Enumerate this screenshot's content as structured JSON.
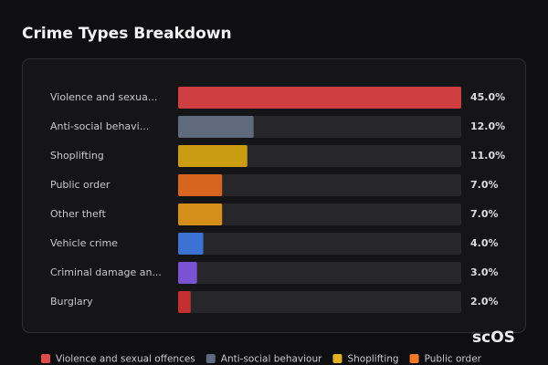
{
  "chart_data": {
    "type": "bar",
    "orientation": "horizontal",
    "title": "Crime Types Breakdown",
    "categories": [
      "Violence and sexua...",
      "Anti-social behavi...",
      "Shoplifting",
      "Public order",
      "Other theft",
      "Vehicle crime",
      "Criminal damage an...",
      "Burglary"
    ],
    "values": [
      45,
      12,
      11,
      7,
      7,
      4,
      3,
      2
    ],
    "value_labels": [
      "45.0%",
      "12.0%",
      "11.0%",
      "7.0%",
      "7.0%",
      "4.0%",
      "3.0%",
      "2.0%"
    ],
    "colors": [
      "#cf3f42",
      "#5f6b7c",
      "#c99c12",
      "#d8651f",
      "#d48e1a",
      "#3b72d4",
      "#7a52d4",
      "#c4302f"
    ],
    "xlim": [
      0,
      45
    ],
    "legend": [
      {
        "name": "Violence and sexual offences",
        "color": "#e04a4c"
      },
      {
        "name": "Anti-social behaviour",
        "color": "#5d6b80"
      },
      {
        "name": "Shoplifting",
        "color": "#e3b224"
      },
      {
        "name": "Public order",
        "color": "#f07a2a"
      }
    ],
    "watermark": "scOS"
  }
}
